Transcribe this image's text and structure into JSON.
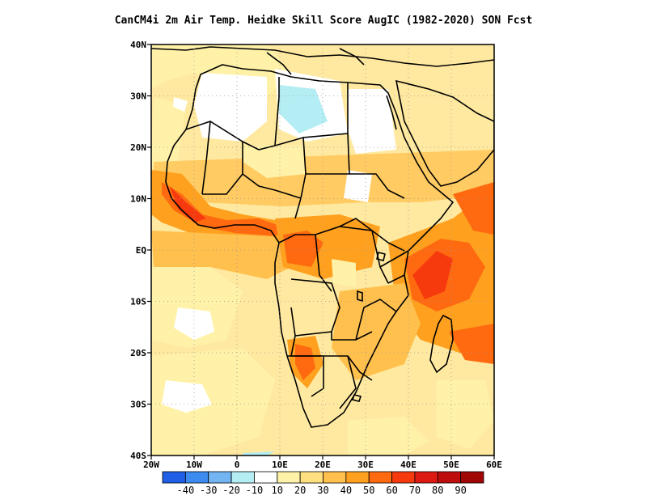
{
  "title": "CanCM4i  2m Air Temp. Heidke Skill Score AugIC (1982-2020) SON Fcst",
  "map": {
    "lon_range": [
      -20,
      60
    ],
    "lat_range": [
      -40,
      40
    ],
    "lat_ticks": [
      {
        "value": 40,
        "label": "40N"
      },
      {
        "value": 30,
        "label": "30N"
      },
      {
        "value": 20,
        "label": "20N"
      },
      {
        "value": 10,
        "label": "10N"
      },
      {
        "value": 0,
        "label": "EQ"
      },
      {
        "value": -10,
        "label": "10S"
      },
      {
        "value": -20,
        "label": "20S"
      },
      {
        "value": -30,
        "label": "30S"
      },
      {
        "value": -40,
        "label": "40S"
      }
    ],
    "lon_ticks": [
      {
        "value": -20,
        "label": "20W"
      },
      {
        "value": -10,
        "label": "10W"
      },
      {
        "value": 0,
        "label": "0"
      },
      {
        "value": 10,
        "label": "10E"
      },
      {
        "value": 20,
        "label": "20E"
      },
      {
        "value": 30,
        "label": "30E"
      },
      {
        "value": 40,
        "label": "40E"
      },
      {
        "value": 50,
        "label": "50E"
      },
      {
        "value": 60,
        "label": "60E"
      }
    ],
    "grid": "dotted"
  },
  "colorbar": {
    "colors": [
      "#1f5fe6",
      "#3c8bf0",
      "#73b4f3",
      "#b4eef4",
      "#ffffff",
      "#fff2a8",
      "#ffdf80",
      "#ffc04d",
      "#ffa01e",
      "#ff6a10",
      "#f63a0e",
      "#dd1a12",
      "#bf0c0c",
      "#a00606"
    ],
    "labels": [
      "-40",
      "-30",
      "-20",
      "-10",
      "10",
      "20",
      "30",
      "40",
      "50",
      "60",
      "70",
      "80",
      "90"
    ]
  }
}
